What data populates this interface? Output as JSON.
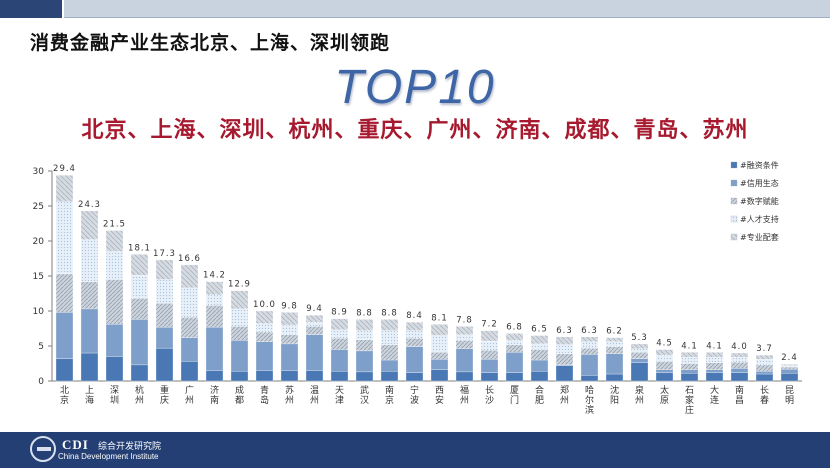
{
  "page_title": "消费金融产业生态北京、上海、深圳领跑",
  "headline": "TOP10",
  "top_cities_line": "北京、上海、深圳、杭州、重庆、广州、济南、成都、青岛、苏州",
  "footer": {
    "brand": "CDI",
    "name_cn": "综合开发研究院",
    "name_en": "China Development Institute"
  },
  "colors": {
    "header_dark": "#2b4576",
    "header_light": "#c8d3df",
    "headline": "#3e66a7",
    "cities": "#a6192e",
    "footer": "#233f74"
  },
  "chart_data": {
    "type": "bar",
    "stacked": true,
    "categories": [
      "北京",
      "上海",
      "深圳",
      "杭州",
      "重庆",
      "广州",
      "济南",
      "成都",
      "青岛",
      "苏州",
      "温州",
      "天津",
      "武汉",
      "南京",
      "宁波",
      "西安",
      "福州",
      "长沙",
      "厦门",
      "合肥",
      "郑州",
      "哈尔滨",
      "沈阳",
      "泉州",
      "太原",
      "石家庄",
      "大连",
      "南昌",
      "长春",
      "昆明"
    ],
    "totals": [
      29.4,
      24.3,
      21.5,
      18.1,
      17.3,
      16.6,
      14.2,
      12.9,
      10.0,
      9.8,
      9.4,
      8.9,
      8.8,
      8.8,
      8.4,
      8.1,
      7.8,
      7.2,
      6.8,
      6.5,
      6.3,
      6.3,
      6.2,
      5.3,
      4.5,
      4.1,
      4.1,
      4.0,
      3.7,
      2.4
    ],
    "series": [
      {
        "name": "#融资条件",
        "color": "#4a78b4",
        "pattern": "solid",
        "values": [
          3.2,
          4.0,
          3.5,
          2.3,
          4.7,
          2.8,
          1.5,
          1.4,
          1.5,
          1.5,
          1.5,
          1.4,
          1.3,
          1.4,
          1.2,
          1.6,
          1.3,
          1.2,
          1.2,
          1.4,
          2.2,
          0.8,
          1.0,
          2.6,
          1.2,
          1.1,
          1.2,
          1.2,
          1.0,
          1.1
        ]
      },
      {
        "name": "#信用生态",
        "color": "#7f9fcb",
        "pattern": "solid",
        "values": [
          6.6,
          6.3,
          4.6,
          6.5,
          3.0,
          3.4,
          6.2,
          4.4,
          4.1,
          3.8,
          5.1,
          3.1,
          3.0,
          1.6,
          3.7,
          1.5,
          3.3,
          1.9,
          2.9,
          1.6,
          0.1,
          3.0,
          2.9,
          0.6,
          0.4,
          0.5,
          0.4,
          0.6,
          0.4,
          0.6
        ]
      },
      {
        "name": "#数字赋能",
        "color": "#b3bcc9",
        "pattern": "hatch",
        "values": [
          5.5,
          3.9,
          6.4,
          3.0,
          3.4,
          2.9,
          3.1,
          2.0,
          1.4,
          1.3,
          1.2,
          1.6,
          1.6,
          2.2,
          1.2,
          1.0,
          1.2,
          1.3,
          1.1,
          1.5,
          1.6,
          0.9,
          1.0,
          0.9,
          1.2,
          0.9,
          1.0,
          0.9,
          0.9,
          0.3
        ]
      },
      {
        "name": "#人才支持",
        "color": "#d9e7f4",
        "pattern": "dots",
        "values": [
          10.3,
          6.0,
          4.0,
          3.3,
          3.4,
          4.2,
          1.5,
          2.5,
          1.2,
          1.4,
          0.6,
          1.2,
          1.3,
          2.0,
          1.1,
          2.4,
          0.8,
          1.3,
          0.6,
          0.8,
          1.3,
          0.9,
          0.7,
          0.5,
          0.9,
          0.9,
          0.8,
          0.7,
          0.8,
          0.2
        ]
      },
      {
        "name": "#专业配套",
        "color": "#c6ccd4",
        "pattern": "hatch",
        "values": [
          3.8,
          4.1,
          3.0,
          3.0,
          2.8,
          3.3,
          1.9,
          2.6,
          1.8,
          1.8,
          1.0,
          1.6,
          1.6,
          1.6,
          1.2,
          1.6,
          1.2,
          1.5,
          1.0,
          1.2,
          1.1,
          0.7,
          0.6,
          0.7,
          0.8,
          0.7,
          0.7,
          0.6,
          0.6,
          0.2
        ]
      }
    ],
    "ylim": [
      0,
      30
    ],
    "yticks": [
      0,
      5,
      10,
      15,
      20,
      25,
      30
    ],
    "legend_position": "right",
    "grid": false
  }
}
